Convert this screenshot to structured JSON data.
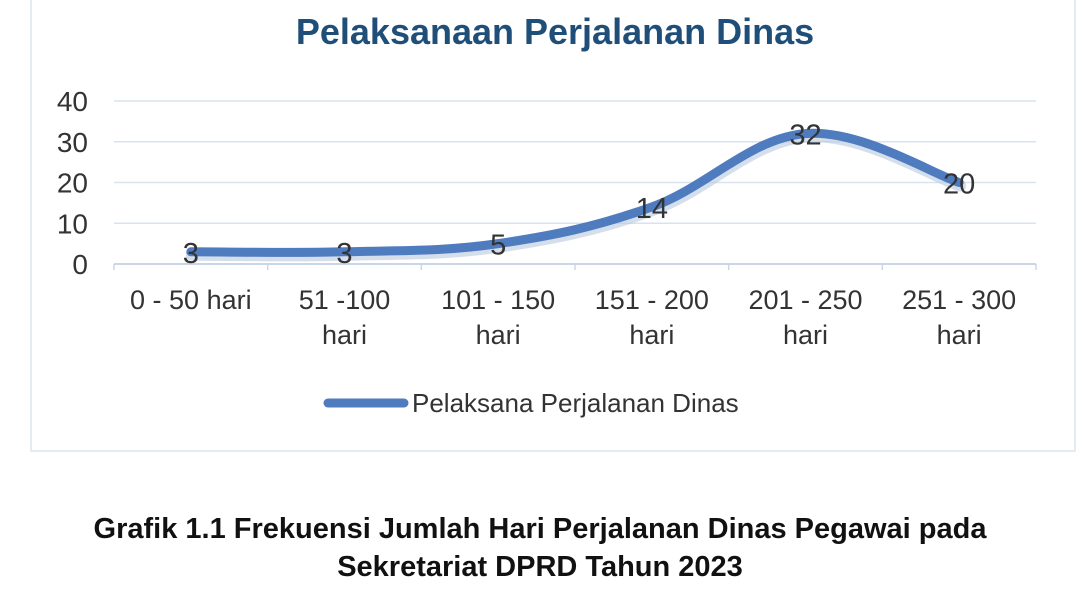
{
  "chart_data": {
    "type": "line",
    "title": "Pelaksanaan Perjalanan Dinas",
    "categories": [
      [
        "0 - 50 hari"
      ],
      [
        "51 -100",
        "hari"
      ],
      [
        "101 - 150",
        "hari"
      ],
      [
        "151 - 200",
        "hari"
      ],
      [
        "201 - 250",
        "hari"
      ],
      [
        "251 - 300",
        "hari"
      ]
    ],
    "series": [
      {
        "name": "Pelaksana Perjalanan Dinas",
        "values": [
          3,
          3,
          5,
          14,
          32,
          20
        ]
      }
    ],
    "yticks": [
      "0",
      "10",
      "20",
      "30",
      "40"
    ],
    "ylim": [
      0,
      40
    ],
    "grid": true,
    "legend": "bottom",
    "data_labels": true,
    "colors": {
      "line": "#4f7bbf",
      "title": "#1f4e79",
      "grid": "#d9e3f0",
      "text": "#333333"
    }
  },
  "caption": {
    "line1": "Grafik 1.1 Frekuensi Jumlah Hari Perjalanan Dinas Pegawai pada",
    "line2": "Sekretariat DPRD Tahun 2023"
  }
}
